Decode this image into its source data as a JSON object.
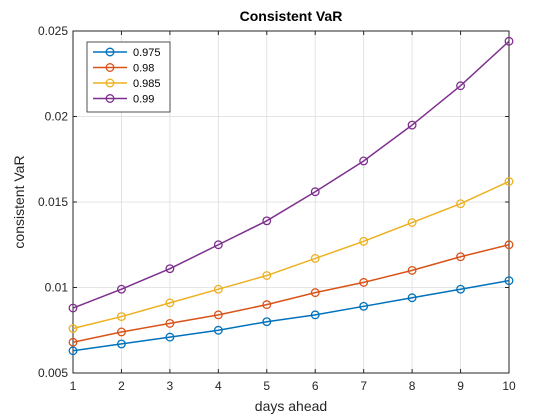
{
  "chart_data": {
    "type": "line",
    "title": "Consistent VaR",
    "xlabel": "days ahead",
    "ylabel": "consistent VaR",
    "x": [
      1,
      2,
      3,
      4,
      5,
      6,
      7,
      8,
      9,
      10
    ],
    "xlim": [
      1,
      10
    ],
    "ylim": [
      0.005,
      0.025
    ],
    "xticks": [
      1,
      2,
      3,
      4,
      5,
      6,
      7,
      8,
      9,
      10
    ],
    "yticks": [
      0.005,
      0.01,
      0.015,
      0.02,
      0.025
    ],
    "ytick_labels": [
      "0.005",
      "0.01",
      "0.015",
      "0.02",
      "0.025"
    ],
    "grid": true,
    "legend_position": "top-left",
    "marker": "circle",
    "series": [
      {
        "name": "0.975",
        "color": "#0072BD",
        "values": [
          0.0063,
          0.0067,
          0.0071,
          0.0075,
          0.008,
          0.0084,
          0.0089,
          0.0094,
          0.0099,
          0.0104
        ]
      },
      {
        "name": "0.98",
        "color": "#D95319",
        "values": [
          0.0068,
          0.0074,
          0.0079,
          0.0084,
          0.009,
          0.0097,
          0.0103,
          0.011,
          0.0118,
          0.0125
        ]
      },
      {
        "name": "0.985",
        "color": "#EDB120",
        "values": [
          0.0076,
          0.0083,
          0.0091,
          0.0099,
          0.0107,
          0.0117,
          0.0127,
          0.0138,
          0.0149,
          0.0162
        ]
      },
      {
        "name": "0.99",
        "color": "#7E2F8E",
        "values": [
          0.0088,
          0.0099,
          0.0111,
          0.0125,
          0.0139,
          0.0156,
          0.0174,
          0.0195,
          0.0218,
          0.0244
        ]
      }
    ]
  }
}
